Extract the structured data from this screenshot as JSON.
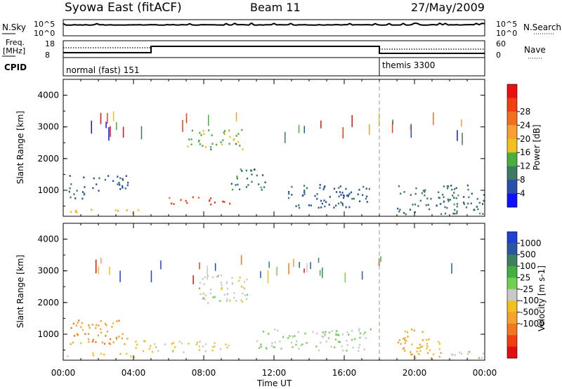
{
  "header": {
    "station": "Syowa East (fitACF)",
    "beam": "Beam 11",
    "date": "27/May/2009"
  },
  "top_panels": {
    "nsky_label": "N.Sky",
    "nsky_ticks": [
      "10^5",
      "10^0"
    ],
    "nsky_right_ticks": [
      "10^5",
      "10^0"
    ],
    "nsearch_label": "N.Search",
    "freq_label_line1": "Freq.",
    "freq_label_line2": "[MHz]",
    "freq_ticks": [
      "18",
      "8"
    ],
    "nave_ticks": [
      "60",
      "0"
    ],
    "nave_label": "Nave",
    "cpid_label": "CPID",
    "cpid_segments": [
      {
        "label": "normal (fast) 151",
        "start_hour": 0,
        "end_hour": 18
      },
      {
        "label": "themis 3300",
        "start_hour": 18,
        "end_hour": 24
      }
    ]
  },
  "axes": {
    "ylabel": "Slant Range [km]",
    "yticks": [
      "1000",
      "2000",
      "3000",
      "4000"
    ],
    "xlabel": "Time UT",
    "xticks": [
      "00:00",
      "04:00",
      "08:00",
      "12:00",
      "16:00",
      "20:00",
      "00:00"
    ]
  },
  "colorbars": {
    "power": {
      "label": "Power [dB]",
      "ticks": [
        "4",
        "8",
        "12",
        "16",
        "20",
        "24",
        "28"
      ],
      "colors": [
        "#1010ff",
        "#2850a8",
        "#3c7a64",
        "#48b040",
        "#f0c020",
        "#f5a030",
        "#f07020",
        "#f04010",
        "#e81010"
      ]
    },
    "velocity": {
      "label": "Velocity [m s-1]",
      "ticks": [
        "1000",
        "500",
        "100",
        "25",
        "-25",
        "-100",
        "-500",
        "-1000"
      ],
      "colors": [
        "#2040d0",
        "#2a58a0",
        "#3c8060",
        "#40b040",
        "#70d050",
        "#c8c8c8",
        "#f0c020",
        "#f5a030",
        "#f07820",
        "#f04010",
        "#e01010"
      ]
    }
  },
  "chart_data": [
    {
      "type": "heatmap",
      "title": "Power",
      "x_range_hours": [
        0,
        24
      ],
      "ylim": [
        180,
        4500
      ],
      "colorbar_label": "Power [dB]",
      "colorbar_range": [
        0,
        30
      ],
      "regions": [
        {
          "t0": 0.2,
          "t1": 5.0,
          "r0": 300,
          "r1": 430,
          "value": 16
        },
        {
          "t0": 1.5,
          "t1": 3.8,
          "r0": 1000,
          "r1": 1500,
          "value": 6
        },
        {
          "t0": 0.3,
          "t1": 1.2,
          "r0": 700,
          "r1": 1500,
          "value": 6
        },
        {
          "t0": 6.0,
          "t1": 9.5,
          "r0": 580,
          "r1": 820,
          "value": 24
        },
        {
          "t0": 7.0,
          "t1": 10.2,
          "r0": 2300,
          "r1": 2950,
          "value": 12
        },
        {
          "t0": 9.5,
          "t1": 11.5,
          "r0": 1000,
          "r1": 1700,
          "value": 8
        },
        {
          "t0": 12.5,
          "t1": 17.5,
          "r0": 450,
          "r1": 1200,
          "value": 6
        },
        {
          "t0": 19.0,
          "t1": 24.0,
          "r0": 250,
          "r1": 1200,
          "value": 8
        }
      ]
    },
    {
      "type": "heatmap",
      "title": "Velocity",
      "x_range_hours": [
        0,
        24
      ],
      "ylim": [
        180,
        4500
      ],
      "colorbar_label": "Velocity [m s-1]",
      "colorbar_range": [
        -1000,
        1000
      ],
      "regions": [
        {
          "t0": 0.2,
          "t1": 4.0,
          "r0": 300,
          "r1": 430,
          "value": -150
        },
        {
          "t0": 0.3,
          "t1": 3.8,
          "r0": 700,
          "r1": 1500,
          "value": -400
        },
        {
          "t0": 4.0,
          "t1": 9.5,
          "r0": 450,
          "r1": 820,
          "value": -100
        },
        {
          "t0": 7.5,
          "t1": 10.5,
          "r0": 2000,
          "r1": 2950,
          "value": 0
        },
        {
          "t0": 11.0,
          "t1": 17.5,
          "r0": 500,
          "r1": 1200,
          "value": 60
        },
        {
          "t0": 19.0,
          "t1": 21.5,
          "r0": 250,
          "r1": 1200,
          "value": -300
        },
        {
          "t0": 22.0,
          "t1": 24.0,
          "r0": 200,
          "r1": 500,
          "value": 60
        }
      ]
    }
  ]
}
